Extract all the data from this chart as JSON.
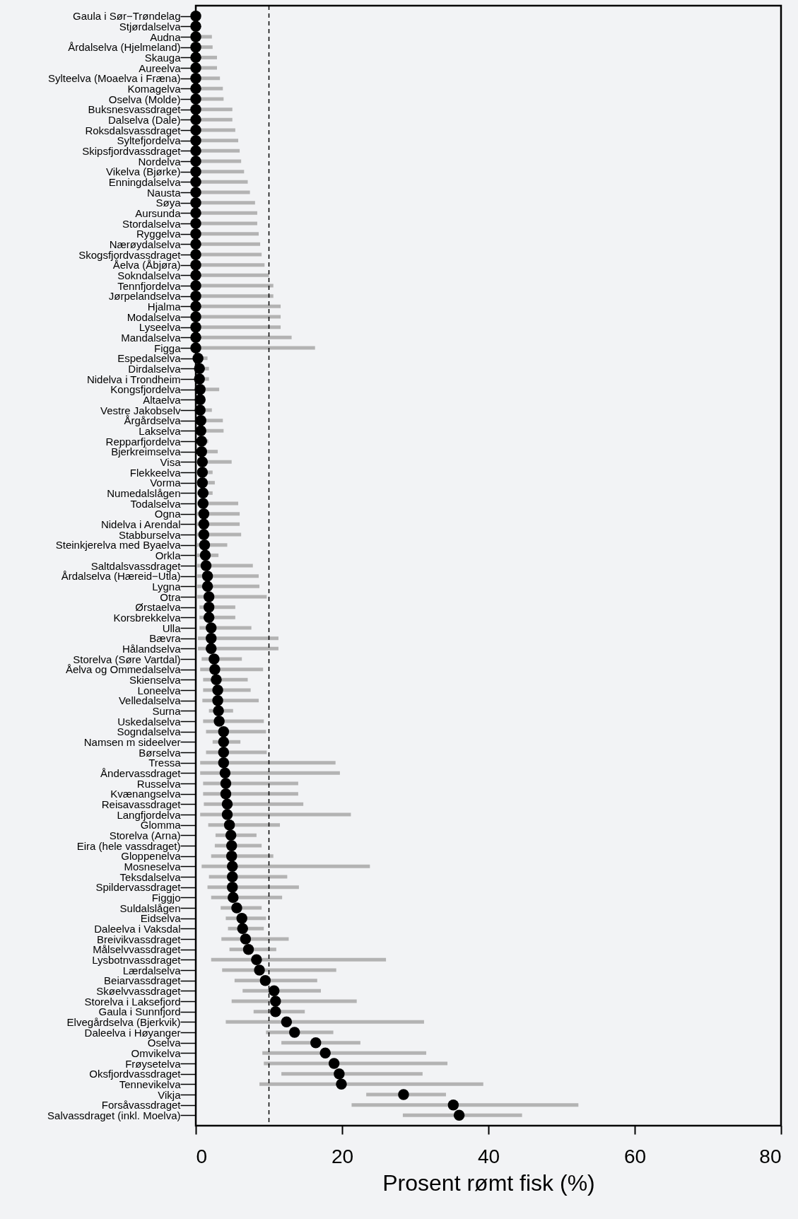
{
  "chart_data": {
    "type": "scatter",
    "orientation": "horizontal",
    "xlabel": "Prosent rømt fisk (%)",
    "xlim": [
      0,
      80
    ],
    "xticks": [
      0,
      20,
      40,
      60,
      80
    ],
    "grid": false,
    "marker": "circle",
    "ref_lines": [
      {
        "axis": "x",
        "value": 10,
        "line_style": "dashed",
        "color": "#000000"
      }
    ],
    "categories": [
      "Gaula i Sør−Trøndelag",
      "Stjørdalselva",
      "Audna",
      "Årdalselva (Hjelmeland)",
      "Skauga",
      "Aureelva",
      "Sylteelva (Moaelva i Fræna)",
      "Komagelva",
      "Oselva (Molde)",
      "Buksnesvassdraget",
      "Dalselva (Dale)",
      "Roksdalsvassdraget",
      "Syltefjordelva",
      "Skipsfjordvassdraget",
      "Nordelva",
      "Vikelva (Bjørke)",
      "Enningdalselva",
      "Nausta",
      "Søya",
      "Aursunda",
      "Stordalselva",
      "Ryggelva",
      "Nærøydalselva",
      "Skogsfjordvassdraget",
      "Åelva (Åbjøra)",
      "Sokndalselva",
      "Tennfjordelva",
      "Jørpelandselva",
      "Hjalma",
      "Modalselva",
      "Lyseelva",
      "Mandalselva",
      "Figga",
      "Espedalselva",
      "Dirdalselva",
      "Nidelva i Trondheim",
      "Kongsfjordelva",
      "Altaelva",
      "Vestre Jakobselv",
      "Årgårdselva",
      "Lakselva",
      "Repparfjordelva",
      "Bjerkreimselva",
      "Visa",
      "Flekkeelva",
      "Vorma",
      "Numedalslågen",
      "Todalselva",
      "Ogna",
      "Nidelva i Arendal",
      "Stabburselva",
      "Steinkjerelva med Byaelva",
      "Orkla",
      "Saltdalsvassdraget",
      "Årdalselva (Hæreid−Utla)",
      "Lygna",
      "Otra",
      "Ørstaelva",
      "Korsbrekkelva",
      "Ulla",
      "Bævra",
      "Hålandselva",
      "Storelva (Søre Vartdal)",
      "Åelva og Ommedalselva",
      "Skienselva",
      "Loneelva",
      "Velledalselva",
      "Surna",
      "Uskedalselva",
      "Sogndalselva",
      "Namsen m sideelver",
      "Børselva",
      "Tressa",
      "Åndervassdraget",
      "Russelva",
      "Kvænangselva",
      "Reisavassdraget",
      "Langfjordelva",
      "Glomma",
      "Storelva (Arna)",
      "Eira (hele vassdraget)",
      "Gloppenelva",
      "Mosneselva",
      "Teksdalselva",
      "Spildervassdraget",
      "Figgjo",
      "Suldalslågen",
      "Eidselva",
      "Daleelva i Vaksdal",
      "Breivikvassdraget",
      "Målselvvassdraget",
      "Lysbotnvassdraget",
      "Lærdalselva",
      "Beiarvassdraget",
      "Skøelvvassdraget",
      "Storelva i Laksefjord",
      "Gaula i Sunnfjord",
      "Elvegårdselva (Bjerkvik)",
      "Daleelva i Høyanger",
      "Oselva",
      "Omvikelva",
      "Frøysetelva",
      "Oksfjordvassdraget",
      "Tennevikelva",
      "Vikja",
      "Forsåvassdraget",
      "Salvassdraget (inkl. Moelva)"
    ],
    "series": [
      {
        "color": "#000000",
        "values": [
          0,
          0,
          0,
          0,
          0,
          0,
          0,
          0,
          0,
          0,
          0,
          0,
          0,
          0,
          0,
          0,
          0,
          0,
          0,
          0,
          0,
          0,
          0,
          0,
          0,
          0,
          0,
          0,
          0,
          0,
          0,
          0,
          0,
          0.3,
          0.5,
          0.5,
          0.6,
          0.6,
          0.6,
          0.7,
          0.7,
          0.8,
          0.8,
          0.9,
          0.9,
          0.9,
          1.0,
          1.0,
          1.1,
          1.1,
          1.1,
          1.2,
          1.3,
          1.4,
          1.6,
          1.6,
          1.8,
          1.8,
          1.8,
          2.1,
          2.1,
          2.1,
          2.5,
          2.6,
          2.8,
          3.0,
          3.0,
          3.1,
          3.2,
          3.8,
          3.8,
          3.8,
          3.8,
          4.0,
          4.1,
          4.1,
          4.3,
          4.3,
          4.6,
          4.8,
          4.9,
          4.9,
          5.0,
          5.0,
          5.0,
          5.1,
          5.6,
          6.3,
          6.4,
          6.8,
          7.2,
          8.3,
          8.7,
          9.5,
          10.7,
          10.9,
          10.9,
          12.4,
          13.5,
          16.4,
          17.7,
          18.9,
          19.6,
          19.9,
          28.4,
          35.2,
          36.0
        ],
        "errors": [
          null,
          null,
          [
            0,
            2.2
          ],
          [
            0,
            2.3
          ],
          [
            0,
            2.9
          ],
          [
            0,
            2.9
          ],
          [
            0,
            3.3
          ],
          [
            0,
            3.7
          ],
          [
            0,
            3.8
          ],
          [
            0,
            5.0
          ],
          [
            0,
            5.0
          ],
          [
            0,
            5.4
          ],
          [
            0,
            5.8
          ],
          [
            0,
            6.0
          ],
          [
            0,
            6.2
          ],
          [
            0,
            6.6
          ],
          [
            0,
            7.1
          ],
          [
            0,
            7.4
          ],
          [
            0,
            8.1
          ],
          [
            0,
            8.4
          ],
          [
            0,
            8.4
          ],
          [
            0,
            8.6
          ],
          [
            0,
            8.8
          ],
          [
            0,
            9.0
          ],
          [
            0,
            9.4
          ],
          [
            0,
            10.0
          ],
          [
            0,
            10.6
          ],
          [
            0,
            10.6
          ],
          [
            0,
            11.6
          ],
          [
            0,
            11.6
          ],
          [
            0,
            11.6
          ],
          [
            0,
            13.1
          ],
          [
            0,
            16.3
          ],
          [
            0,
            1.6
          ],
          [
            0,
            1.8
          ],
          [
            0.2,
            1.8
          ],
          [
            0.1,
            3.2
          ],
          null,
          [
            0.1,
            2.2
          ],
          [
            0.1,
            3.7
          ],
          [
            0.1,
            3.8
          ],
          [
            0.1,
            1.7
          ],
          [
            0.1,
            3.0
          ],
          [
            0.1,
            4.9
          ],
          [
            0.1,
            2.3
          ],
          [
            0.1,
            2.6
          ],
          [
            0.1,
            2.3
          ],
          [
            0.1,
            5.8
          ],
          [
            0.1,
            6.0
          ],
          [
            0.1,
            6.0
          ],
          [
            0.1,
            6.2
          ],
          [
            0.1,
            4.3
          ],
          [
            0.1,
            3.1
          ],
          [
            0.2,
            7.8
          ],
          [
            0.2,
            8.6
          ],
          [
            0.2,
            8.7
          ],
          [
            0.2,
            9.7
          ],
          [
            0.5,
            5.4
          ],
          [
            0.5,
            5.4
          ],
          [
            0.5,
            7.6
          ],
          [
            0.3,
            11.3
          ],
          [
            0.3,
            11.3
          ],
          [
            0.8,
            6.3
          ],
          [
            0.6,
            9.2
          ],
          [
            1.0,
            7.1
          ],
          [
            1.0,
            7.5
          ],
          [
            0.9,
            8.6
          ],
          [
            1.8,
            5.1
          ],
          [
            1.0,
            9.3
          ],
          [
            1.4,
            9.6
          ],
          [
            2.3,
            6.1
          ],
          [
            1.4,
            9.7
          ],
          [
            0.6,
            19.1
          ],
          [
            0.6,
            19.7
          ],
          [
            1.0,
            14.0
          ],
          [
            1.0,
            14.0
          ],
          [
            1.1,
            14.7
          ],
          [
            0.6,
            21.2
          ],
          [
            1.7,
            11.5
          ],
          [
            2.7,
            8.3
          ],
          [
            2.6,
            9.0
          ],
          [
            2.1,
            10.6
          ],
          [
            0.8,
            23.8
          ],
          [
            1.8,
            12.5
          ],
          [
            1.6,
            14.1
          ],
          [
            2.1,
            11.8
          ],
          [
            3.4,
            9.0
          ],
          [
            4.1,
            9.6
          ],
          [
            4.4,
            9.3
          ],
          [
            3.5,
            12.7
          ],
          [
            4.6,
            11.0
          ],
          [
            2.1,
            26.0
          ],
          [
            3.6,
            19.2
          ],
          [
            5.3,
            16.6
          ],
          [
            6.4,
            17.1
          ],
          [
            4.9,
            22.0
          ],
          [
            7.9,
            14.9
          ],
          [
            4.1,
            31.2
          ],
          [
            9.6,
            18.8
          ],
          [
            11.7,
            22.5
          ],
          [
            9.1,
            31.5
          ],
          [
            9.3,
            34.4
          ],
          [
            11.7,
            31.0
          ],
          [
            8.7,
            39.3
          ],
          [
            23.3,
            34.2
          ],
          [
            21.3,
            52.3
          ],
          [
            28.3,
            44.6
          ]
        ]
      }
    ]
  }
}
